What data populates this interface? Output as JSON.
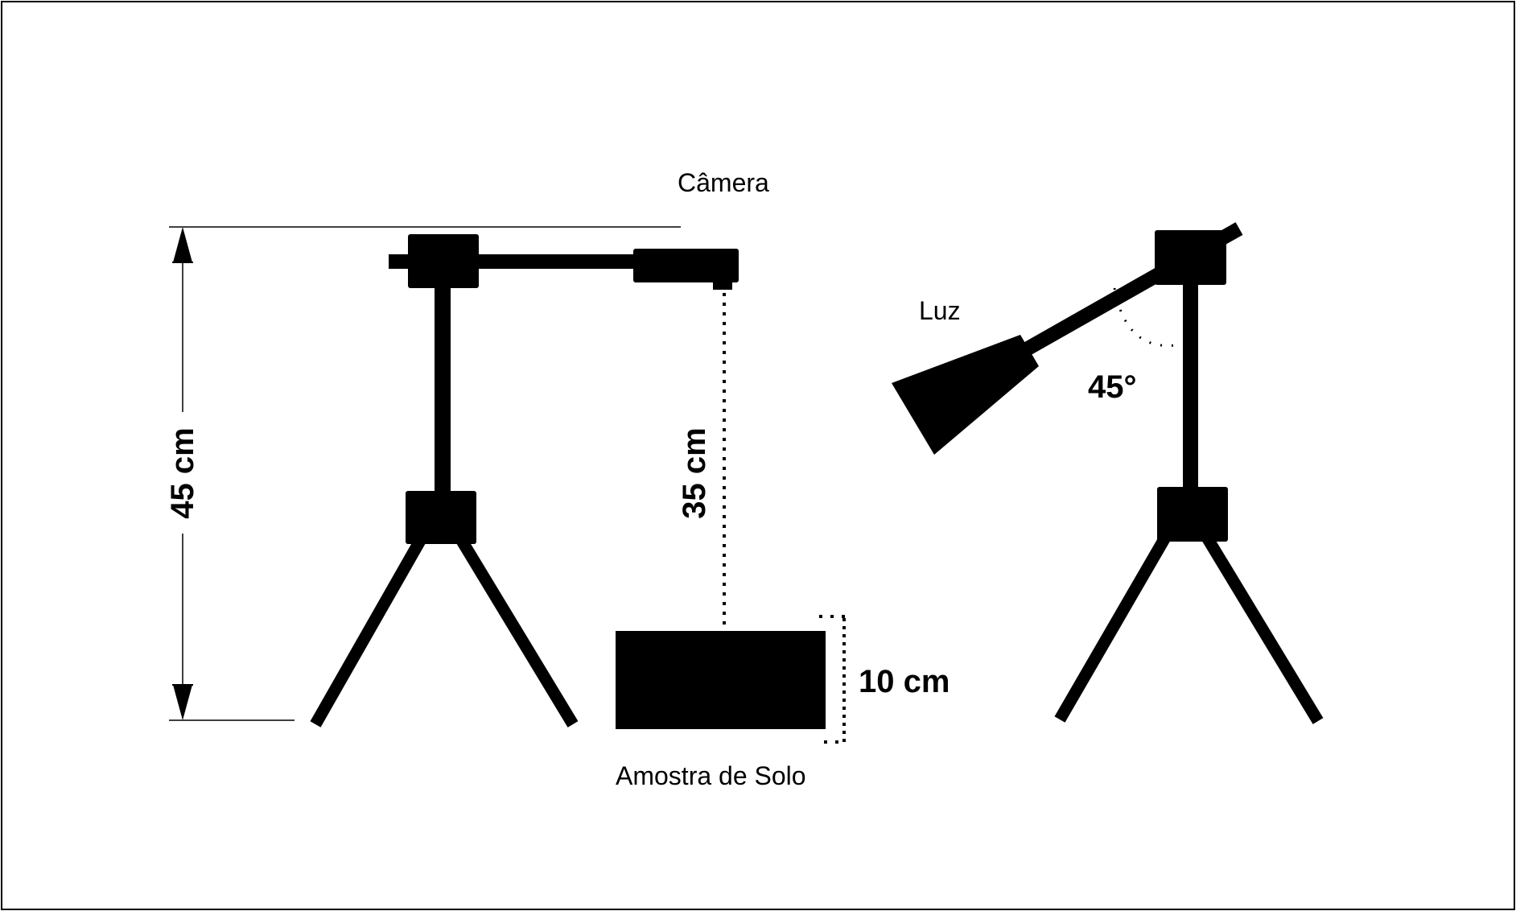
{
  "labels": {
    "camera": "Câmera",
    "light": "Luz",
    "soil_sample": "Amostra de Solo"
  },
  "dimensions": {
    "total_height": "45 cm",
    "camera_distance": "35 cm",
    "sample_height": "10 cm",
    "light_angle": "45°"
  },
  "colors": {
    "ink": "#000000",
    "background": "#ffffff"
  }
}
